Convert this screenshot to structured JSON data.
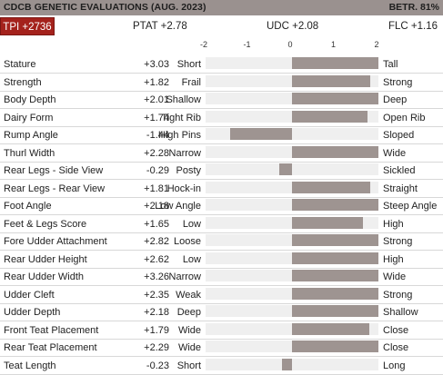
{
  "header": {
    "title": "CDCB GENETIC EVALUATIONS (AUG. 2023)",
    "reliability": "BETR. 81%"
  },
  "summary": {
    "tpi": "TPI +2736",
    "ptat": "PTAT +2.78",
    "udc": "UDC +2.08",
    "flc": "FLC +1.16"
  },
  "chart_data": {
    "type": "bar",
    "orientation": "horizontal",
    "xlim": [
      -2,
      2
    ],
    "ticks": [
      "-2",
      "-1",
      "0",
      "1",
      "2"
    ],
    "grid": false,
    "rows": [
      {
        "trait": "Stature",
        "value": 3.03,
        "label": "+3.03",
        "low": "Short",
        "high": "Tall"
      },
      {
        "trait": "Strength",
        "value": 1.82,
        "label": "+1.82",
        "low": "Frail",
        "high": "Strong"
      },
      {
        "trait": "Body Depth",
        "value": 2.01,
        "label": "+2.01",
        "low": "Shallow",
        "high": "Deep"
      },
      {
        "trait": "Dairy Form",
        "value": 1.74,
        "label": "+1.74",
        "low": "Tight Rib",
        "high": "Open Rib"
      },
      {
        "trait": "Rump Angle",
        "value": -1.44,
        "label": "-1.44",
        "low": "High Pins",
        "high": "Sloped"
      },
      {
        "trait": "Thurl Width",
        "value": 2.28,
        "label": "+2.28",
        "low": "Narrow",
        "high": "Wide"
      },
      {
        "trait": "Rear Legs - Side View",
        "value": -0.29,
        "label": "-0.29",
        "low": "Posty",
        "high": "Sickled"
      },
      {
        "trait": "Rear Legs - Rear View",
        "value": 1.81,
        "label": "+1.81",
        "low": "Hock-in",
        "high": "Straight"
      },
      {
        "trait": "Foot Angle",
        "value": 2.18,
        "label": "+2.18",
        "low": "Low Angle",
        "high": "Steep Angle"
      },
      {
        "trait": "Feet & Legs Score",
        "value": 1.65,
        "label": "+1.65",
        "low": "Low",
        "high": "High"
      },
      {
        "trait": "Fore Udder Attachment",
        "value": 2.82,
        "label": "+2.82",
        "low": "Loose",
        "high": "Strong"
      },
      {
        "trait": "Rear Udder Height",
        "value": 2.62,
        "label": "+2.62",
        "low": "Low",
        "high": "High"
      },
      {
        "trait": "Rear Udder Width",
        "value": 3.26,
        "label": "+3.26",
        "low": "Narrow",
        "high": "Wide"
      },
      {
        "trait": "Udder Cleft",
        "value": 2.35,
        "label": "+2.35",
        "low": "Weak",
        "high": "Strong"
      },
      {
        "trait": "Udder Depth",
        "value": 2.18,
        "label": "+2.18",
        "low": "Deep",
        "high": "Shallow"
      },
      {
        "trait": "Front Teat Placement",
        "value": 1.79,
        "label": "+1.79",
        "low": "Wide",
        "high": "Close"
      },
      {
        "trait": "Rear Teat Placement",
        "value": 2.29,
        "label": "+2.29",
        "low": "Wide",
        "high": "Close"
      },
      {
        "trait": "Teat Length",
        "value": -0.23,
        "label": "-0.23",
        "low": "Short",
        "high": "Long"
      }
    ]
  },
  "colors": {
    "header_bg": "#9a918f",
    "tpi_bg": "#a4221c",
    "bar": "#9e9491",
    "track": "#efefef"
  }
}
